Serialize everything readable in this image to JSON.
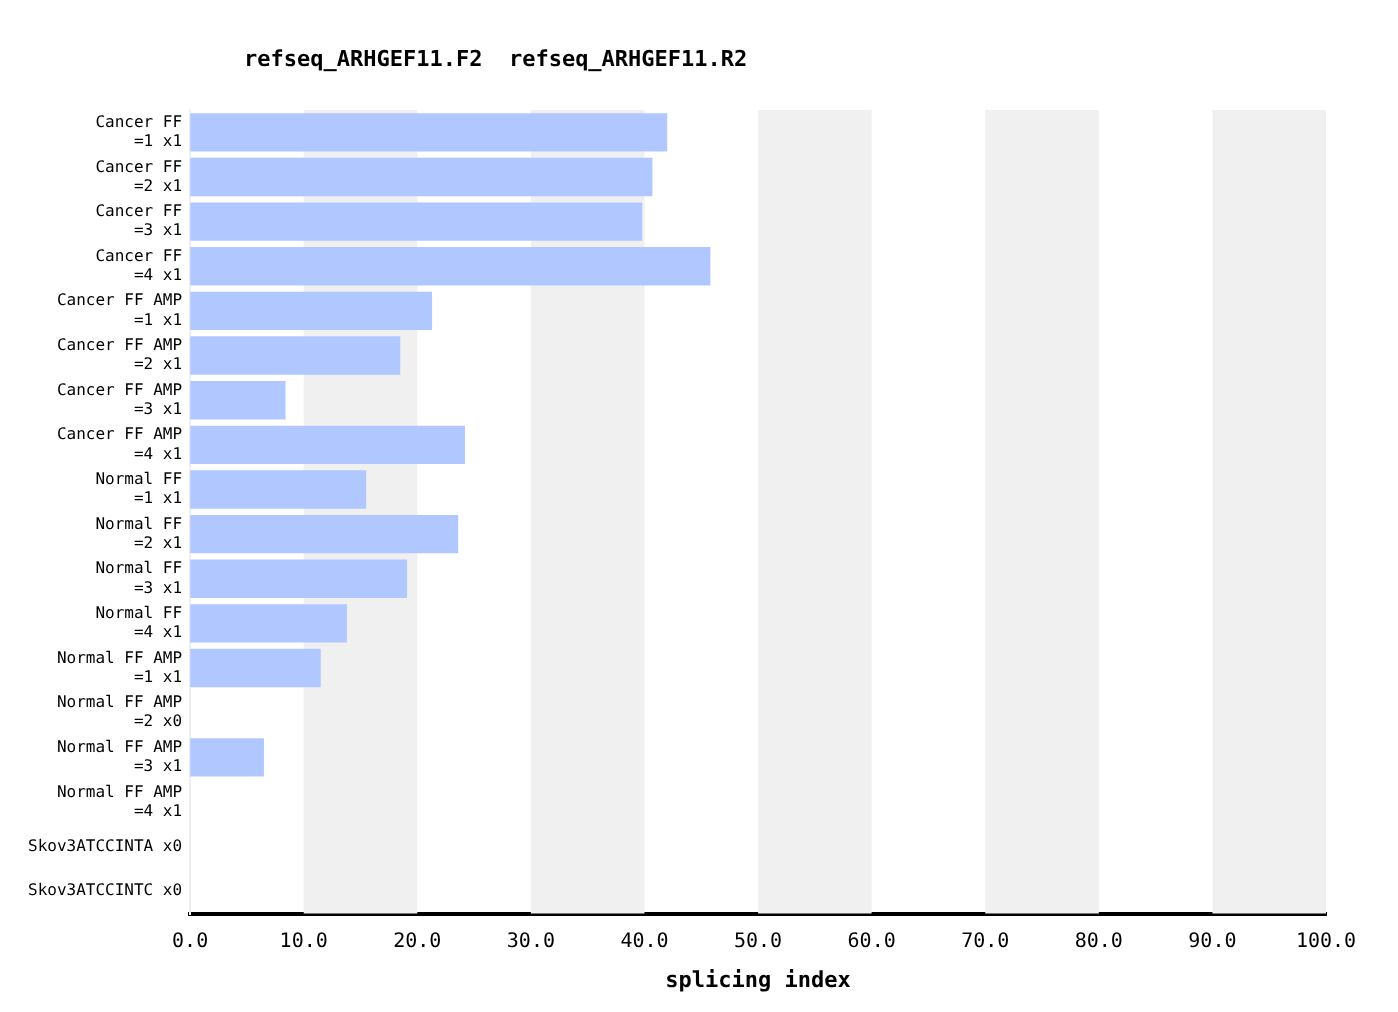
{
  "chart_data": {
    "type": "bar",
    "orientation": "horizontal",
    "title": "refseq_ARHGEF11.F2  refseq_ARHGEF11.R2",
    "xlabel": "splicing index",
    "categories": [
      "Cancer FF\n=1 x1",
      "Cancer FF\n=2 x1",
      "Cancer FF\n=3 x1",
      "Cancer FF\n=4 x1",
      "Cancer FF AMP\n=1 x1",
      "Cancer FF AMP\n=2 x1",
      "Cancer FF AMP\n=3 x1",
      "Cancer FF AMP\n=4 x1",
      "Normal FF\n=1 x1",
      "Normal FF\n=2 x1",
      "Normal FF\n=3 x1",
      "Normal FF\n=4 x1",
      "Normal FF AMP\n=1 x1",
      "Normal FF AMP\n=2 x0",
      "Normal FF AMP\n=3 x1",
      "Normal FF AMP\n=4 x1",
      "Skov3ATCCINTA x0",
      "Skov3ATCCINTC x0"
    ],
    "values": [
      42.0,
      40.7,
      39.8,
      45.8,
      21.3,
      18.5,
      8.4,
      24.2,
      15.5,
      23.6,
      19.1,
      13.8,
      11.5,
      null,
      6.5,
      null,
      null,
      null
    ],
    "color": "#b0c8ff",
    "xlim": [
      0,
      100
    ],
    "xticks": [
      {
        "value": 0,
        "label": "0.0"
      },
      {
        "value": 10,
        "label": "10.0"
      },
      {
        "value": 20,
        "label": "20.0"
      },
      {
        "value": 30,
        "label": "30.0"
      },
      {
        "value": 40,
        "label": "40.0"
      },
      {
        "value": 50,
        "label": "50.0"
      },
      {
        "value": 60,
        "label": "60.0"
      },
      {
        "value": 70,
        "label": "70.0"
      },
      {
        "value": 80,
        "label": "80.0"
      },
      {
        "value": 90,
        "label": "90.0"
      },
      {
        "value": 100,
        "label": "100.0"
      }
    ],
    "bands": [
      {
        "axis": "x",
        "from": 10,
        "to": 20,
        "color": "#f0f0f0"
      },
      {
        "axis": "x",
        "from": 30,
        "to": 40,
        "color": "#f0f0f0"
      },
      {
        "axis": "x",
        "from": 50,
        "to": 60,
        "color": "#f0f0f0"
      },
      {
        "axis": "x",
        "from": 70,
        "to": 80,
        "color": "#f0f0f0"
      },
      {
        "axis": "x",
        "from": 90,
        "to": 100,
        "color": "#f0f0f0"
      }
    ],
    "grid": false,
    "legend": false
  }
}
